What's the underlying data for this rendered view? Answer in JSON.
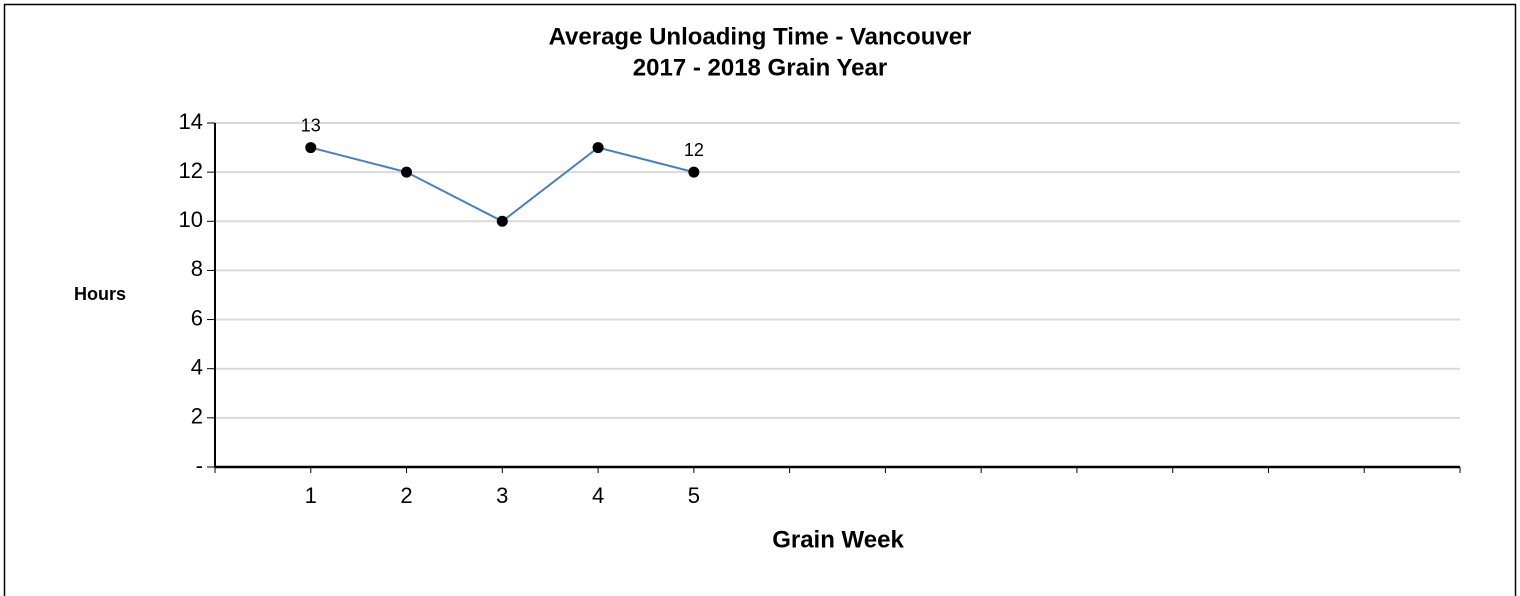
{
  "chart_data": {
    "type": "line",
    "title": "Average Unloading Time - Vancouver",
    "subtitle": "2017 - 2018 Grain Year",
    "y_label": "Hours",
    "x_label": "Grain Week",
    "categories": [
      "1",
      "2",
      "3",
      "4",
      "5",
      null,
      null,
      null,
      null,
      null,
      null,
      null,
      null
    ],
    "series": [
      {
        "name": "Average Unloading Time",
        "color": "#4a7fb8",
        "values": [
          13,
          12,
          10,
          13,
          12,
          null,
          null,
          null,
          null,
          null,
          null,
          null,
          null
        ],
        "value_labels": [
          "13",
          null,
          null,
          null,
          "12",
          null,
          null,
          null,
          null,
          null,
          null,
          null,
          null
        ]
      }
    ],
    "ylim": [
      0,
      14
    ],
    "yticks": [
      {
        "value": 0,
        "label": "-"
      },
      2,
      4,
      6,
      8,
      10,
      12,
      14
    ],
    "grid": true
  }
}
